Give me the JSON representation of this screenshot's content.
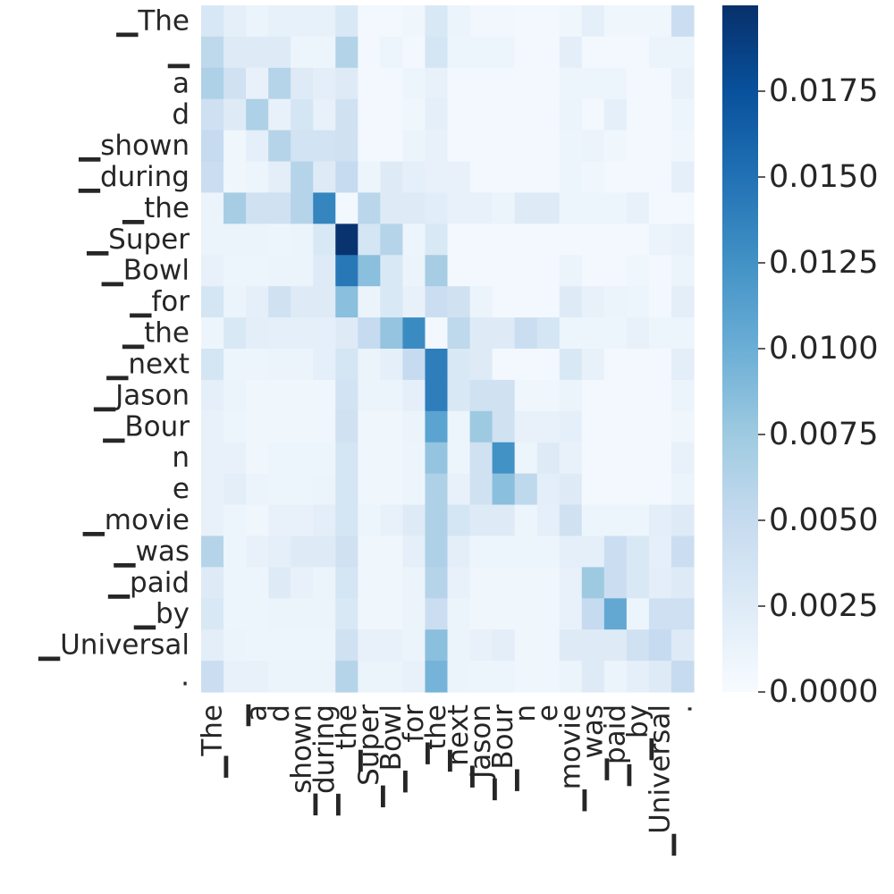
{
  "chart_data": {
    "type": "heatmap",
    "title": "",
    "xlabel": "",
    "ylabel": "",
    "colormap": "Blues",
    "color_low": "#f7fbff",
    "color_high": "#08306b",
    "vmin": 0,
    "vmax": 0.02,
    "colorbar_ticks": [
      "0.0000",
      "0.0025",
      "0.0050",
      "0.0075",
      "0.0100",
      "0.0125",
      "0.0150",
      "0.0175"
    ],
    "colorbar_tick_values": [
      0,
      0.0025,
      0.005,
      0.0075,
      0.01,
      0.0125,
      0.015,
      0.0175
    ],
    "row_labels": [
      "▁The",
      "▁",
      "a",
      "d",
      "▁shown",
      "▁during",
      "▁the",
      "▁Super",
      "▁Bowl",
      "▁for",
      "▁the",
      "▁next",
      "▁Jason",
      "▁Bour",
      "n",
      "e",
      "▁movie",
      "▁was",
      "▁paid",
      "▁by",
      "▁Universal",
      "."
    ],
    "col_labels": [
      "▁The",
      "▁",
      "a",
      "d",
      "▁shown",
      "▁during",
      "▁the",
      "▁Super",
      "▁Bowl",
      "▁for",
      "▁the",
      "▁next",
      "▁Jason",
      "▁Bour",
      "n",
      "e",
      "▁movie",
      "▁was",
      "▁paid",
      "▁by",
      "▁Universal",
      "."
    ],
    "matrix": [
      [
        0.0032,
        0.0018,
        0.0012,
        0.0016,
        0.0016,
        0.0016,
        0.003,
        0.0005,
        0.0005,
        0.0008,
        0.003,
        0.0012,
        0.0006,
        0.0006,
        0.0005,
        0.0005,
        0.0008,
        0.0018,
        0.0008,
        0.0008,
        0.0008,
        0.0045
      ],
      [
        0.0055,
        0.0025,
        0.0025,
        0.0025,
        0.001,
        0.001,
        0.0062,
        0.0005,
        0.001,
        0.0005,
        0.0035,
        0.001,
        0.001,
        0.001,
        0.0005,
        0.0005,
        0.002,
        0.0005,
        0.0005,
        0.0005,
        0.0012,
        0.0012
      ],
      [
        0.0065,
        0.004,
        0.0015,
        0.006,
        0.0025,
        0.002,
        0.0025,
        0.0005,
        0.0005,
        0.001,
        0.0015,
        0.0005,
        0.0005,
        0.0005,
        0.0005,
        0.0005,
        0.001,
        0.001,
        0.001,
        0.0005,
        0.0005,
        0.0015
      ],
      [
        0.0042,
        0.0025,
        0.0065,
        0.0015,
        0.0035,
        0.0015,
        0.004,
        0.0005,
        0.0005,
        0.0008,
        0.0018,
        0.0005,
        0.0005,
        0.0005,
        0.0005,
        0.0005,
        0.0012,
        0.0005,
        0.0018,
        0.0005,
        0.0005,
        0.001
      ],
      [
        0.005,
        0.0008,
        0.0018,
        0.006,
        0.0038,
        0.0038,
        0.004,
        0.0005,
        0.0005,
        0.0012,
        0.0015,
        0.0005,
        0.0005,
        0.0005,
        0.0005,
        0.0005,
        0.001,
        0.0012,
        0.0008,
        0.0005,
        0.0005,
        0.0008
      ],
      [
        0.0045,
        0.0008,
        0.001,
        0.002,
        0.006,
        0.0025,
        0.005,
        0.001,
        0.0025,
        0.0018,
        0.0015,
        0.0015,
        0.0005,
        0.0005,
        0.0005,
        0.0005,
        0.001,
        0.0008,
        0.0005,
        0.0005,
        0.0005,
        0.0018
      ],
      [
        0.0012,
        0.007,
        0.004,
        0.004,
        0.006,
        0.0135,
        0.0005,
        0.0058,
        0.0025,
        0.0025,
        0.0022,
        0.0015,
        0.0015,
        0.0012,
        0.0025,
        0.0025,
        0.001,
        0.001,
        0.001,
        0.0015,
        0.0005,
        0.0005
      ],
      [
        0.0012,
        0.0012,
        0.0012,
        0.001,
        0.0012,
        0.003,
        0.0198,
        0.0035,
        0.006,
        0.001,
        0.003,
        0.0005,
        0.0005,
        0.0005,
        0.0005,
        0.0005,
        0.0005,
        0.0005,
        0.0005,
        0.0005,
        0.0012,
        0.0015
      ],
      [
        0.0015,
        0.001,
        0.001,
        0.0012,
        0.0012,
        0.0025,
        0.0145,
        0.0085,
        0.003,
        0.0012,
        0.007,
        0.0005,
        0.0005,
        0.0005,
        0.0005,
        0.0005,
        0.0012,
        0.0005,
        0.0005,
        0.0008,
        0.0005,
        0.0012
      ],
      [
        0.0035,
        0.0012,
        0.0018,
        0.004,
        0.0025,
        0.0025,
        0.0085,
        0.0012,
        0.003,
        0.0015,
        0.0045,
        0.004,
        0.0012,
        0.0005,
        0.0005,
        0.0005,
        0.0025,
        0.0015,
        0.0012,
        0.001,
        0.0005,
        0.002
      ],
      [
        0.001,
        0.003,
        0.002,
        0.0018,
        0.0018,
        0.0018,
        0.0025,
        0.005,
        0.008,
        0.013,
        0.0005,
        0.0055,
        0.0025,
        0.0025,
        0.0045,
        0.0035,
        0.001,
        0.001,
        0.001,
        0.0015,
        0.001,
        0.001
      ],
      [
        0.0035,
        0.001,
        0.001,
        0.0012,
        0.0012,
        0.0018,
        0.0035,
        0.0012,
        0.0018,
        0.005,
        0.014,
        0.003,
        0.0025,
        0.0005,
        0.0005,
        0.0005,
        0.003,
        0.0015,
        0.0005,
        0.0005,
        0.0005,
        0.002
      ],
      [
        0.0018,
        0.0012,
        0.0008,
        0.0008,
        0.0008,
        0.0008,
        0.0038,
        0.0012,
        0.0012,
        0.0018,
        0.014,
        0.003,
        0.004,
        0.004,
        0.0008,
        0.0008,
        0.0012,
        0.0005,
        0.0005,
        0.0005,
        0.0005,
        0.0012
      ],
      [
        0.0015,
        0.001,
        0.0008,
        0.0008,
        0.0008,
        0.0008,
        0.004,
        0.0008,
        0.0008,
        0.0012,
        0.011,
        0.001,
        0.0075,
        0.004,
        0.0015,
        0.0015,
        0.0018,
        0.0005,
        0.0005,
        0.0005,
        0.0005,
        0.0008
      ],
      [
        0.0015,
        0.0015,
        0.0008,
        0.001,
        0.001,
        0.001,
        0.0035,
        0.0008,
        0.0008,
        0.001,
        0.008,
        0.001,
        0.004,
        0.0125,
        0.001,
        0.0025,
        0.0015,
        0.0005,
        0.0005,
        0.0005,
        0.0005,
        0.0015
      ],
      [
        0.0015,
        0.002,
        0.0012,
        0.001,
        0.001,
        0.0012,
        0.0035,
        0.0008,
        0.0008,
        0.001,
        0.0065,
        0.0015,
        0.004,
        0.0085,
        0.0055,
        0.002,
        0.0025,
        0.0005,
        0.0005,
        0.0005,
        0.0005,
        0.0012
      ],
      [
        0.0015,
        0.001,
        0.0008,
        0.0015,
        0.0015,
        0.002,
        0.0035,
        0.001,
        0.0015,
        0.0025,
        0.0065,
        0.0035,
        0.0025,
        0.0025,
        0.001,
        0.0018,
        0.004,
        0.001,
        0.001,
        0.001,
        0.002,
        0.0025
      ],
      [
        0.006,
        0.001,
        0.0015,
        0.0018,
        0.0025,
        0.0025,
        0.004,
        0.0008,
        0.0008,
        0.0018,
        0.0065,
        0.002,
        0.001,
        0.001,
        0.001,
        0.001,
        0.0018,
        0.0018,
        0.0045,
        0.003,
        0.0018,
        0.0045
      ],
      [
        0.0025,
        0.001,
        0.001,
        0.0025,
        0.0015,
        0.0012,
        0.0035,
        0.0008,
        0.0008,
        0.0012,
        0.006,
        0.0015,
        0.0008,
        0.0008,
        0.0008,
        0.0008,
        0.0015,
        0.0075,
        0.0045,
        0.003,
        0.002,
        0.0025
      ],
      [
        0.003,
        0.001,
        0.001,
        0.0012,
        0.0012,
        0.0012,
        0.003,
        0.0008,
        0.0008,
        0.0012,
        0.0045,
        0.0012,
        0.0008,
        0.0008,
        0.0008,
        0.0008,
        0.0015,
        0.005,
        0.0105,
        0.001,
        0.0042,
        0.0042
      ],
      [
        0.002,
        0.0012,
        0.001,
        0.001,
        0.001,
        0.001,
        0.004,
        0.0015,
        0.0015,
        0.0012,
        0.0085,
        0.0012,
        0.0015,
        0.002,
        0.0008,
        0.0008,
        0.0025,
        0.0025,
        0.0025,
        0.004,
        0.005,
        0.0025
      ],
      [
        0.0045,
        0.0015,
        0.0015,
        0.0012,
        0.0012,
        0.0012,
        0.006,
        0.0012,
        0.0012,
        0.0015,
        0.0095,
        0.0012,
        0.001,
        0.001,
        0.0008,
        0.0008,
        0.0012,
        0.0025,
        0.0012,
        0.0018,
        0.0025,
        0.005
      ]
    ]
  }
}
